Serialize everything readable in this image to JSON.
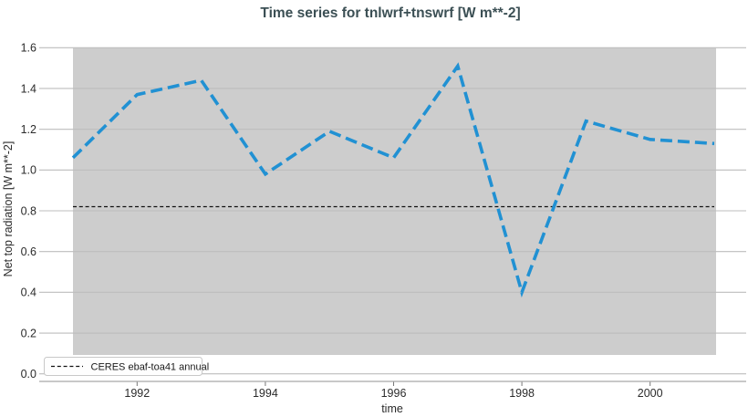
{
  "chart_data": {
    "type": "line",
    "title": "Time series for tnlwrf+tnswrf [W m**-2]",
    "xlabel": "time",
    "ylabel": "Net top radiation [W m**-2]",
    "x": [
      1991,
      1992,
      1993,
      1994,
      1995,
      1996,
      1997,
      1998,
      1999,
      2000,
      2001
    ],
    "series": [
      {
        "name": "tnlwrf+tnswrf",
        "style": "dashed",
        "color": "#2191d3",
        "values": [
          1.06,
          1.37,
          1.44,
          0.98,
          1.19,
          1.06,
          1.51,
          0.4,
          1.24,
          1.15,
          1.13
        ]
      }
    ],
    "reference_line": {
      "label": "CERES ebaf-toa41 annual",
      "value": 0.82,
      "style": "dashed",
      "color": "#111111"
    },
    "ylim": [
      0.0,
      1.6
    ],
    "yticks": [
      0.0,
      0.2,
      0.4,
      0.6,
      0.8,
      1.0,
      1.2,
      1.4,
      1.6
    ],
    "ytick_labels": [
      "0.0",
      "0.2",
      "0.4",
      "0.6",
      "0.8",
      "1.0",
      "1.2",
      "1.4",
      "1.6"
    ],
    "xticks": [
      1992,
      1994,
      1996,
      1998,
      2000
    ],
    "xtick_labels": [
      "1992",
      "1994",
      "1996",
      "1998",
      "2000"
    ],
    "grid": true,
    "legend_position": "lower left",
    "colors": {
      "title": "#3b4f54",
      "tick_text": "#2b2b2b",
      "band_background": "#cdcdcd",
      "gridline": "#bdbdbd",
      "axis_spine": "#b5b5b5",
      "tick_mark": "#777777",
      "legend_border": "#c8c8c8",
      "legend_background": "#fefefe"
    }
  }
}
